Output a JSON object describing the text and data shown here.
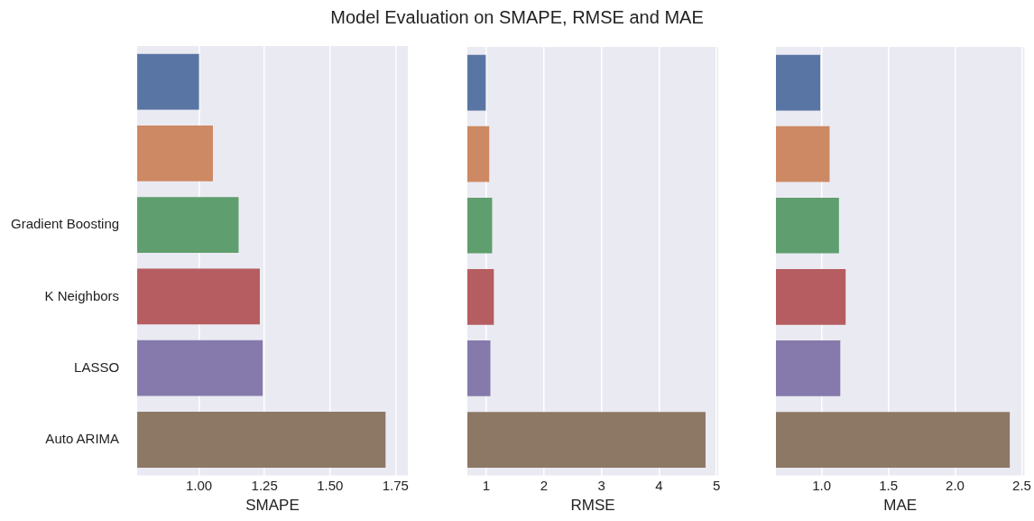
{
  "chart_data": [
    {
      "type": "bar",
      "title": "Model Evaluation on SMAPE, RMSE and MAE",
      "orientation": "horizontal",
      "categories": [
        null,
        null,
        "Gradient Boosting",
        "K Neighbors",
        "LASSO",
        "Auto ARIMA"
      ],
      "values": [
        1.0,
        1.053,
        1.151,
        1.232,
        1.243,
        1.712
      ],
      "colors": [
        "#5975a4",
        "#cc8963",
        "#5f9e6e",
        "#b55d60",
        "#857aab",
        "#8d7866"
      ],
      "xlabel": "SMAPE",
      "xlim": [
        0.764,
        1.797
      ],
      "xticks": [
        {
          "value": 1,
          "label": "1.00"
        },
        {
          "value": 1.25,
          "label": "1.25"
        },
        {
          "value": 1.5,
          "label": "1.50"
        },
        {
          "value": 1.75,
          "label": "1.75"
        }
      ],
      "grid": "x"
    },
    {
      "type": "bar",
      "orientation": "horizontal",
      "categories": [
        null,
        null,
        null,
        null,
        null,
        null
      ],
      "values": [
        0.99,
        1.05,
        1.1,
        1.13,
        1.07,
        4.81
      ],
      "colors": [
        "#5975a4",
        "#cc8963",
        "#5f9e6e",
        "#b55d60",
        "#857aab",
        "#8d7866"
      ],
      "xlabel": "RMSE",
      "xlim": [
        0.67,
        5.03
      ],
      "xticks": [
        1,
        2,
        3,
        4,
        5
      ],
      "grid": "x",
      "tick_labels": "x"
    },
    {
      "type": "bar",
      "orientation": "horizontal",
      "categories": [
        null,
        null,
        null,
        null,
        null,
        null
      ],
      "values": [
        0.99,
        1.06,
        1.13,
        1.18,
        1.14,
        2.41
      ],
      "colors": [
        "#5975a4",
        "#cc8963",
        "#5f9e6e",
        "#b55d60",
        "#857aab",
        "#8d7866"
      ],
      "xlabel": "MAE",
      "xlim": [
        0.658,
        2.52
      ],
      "xticks": [
        {
          "value": 1,
          "label": "1.0"
        },
        {
          "value": 1.5,
          "label": "1.5"
        },
        {
          "value": 2,
          "label": "2.0"
        },
        {
          "value": 2.5,
          "label": "2.5"
        }
      ],
      "grid": "x",
      "tick_labels": "x"
    }
  ]
}
